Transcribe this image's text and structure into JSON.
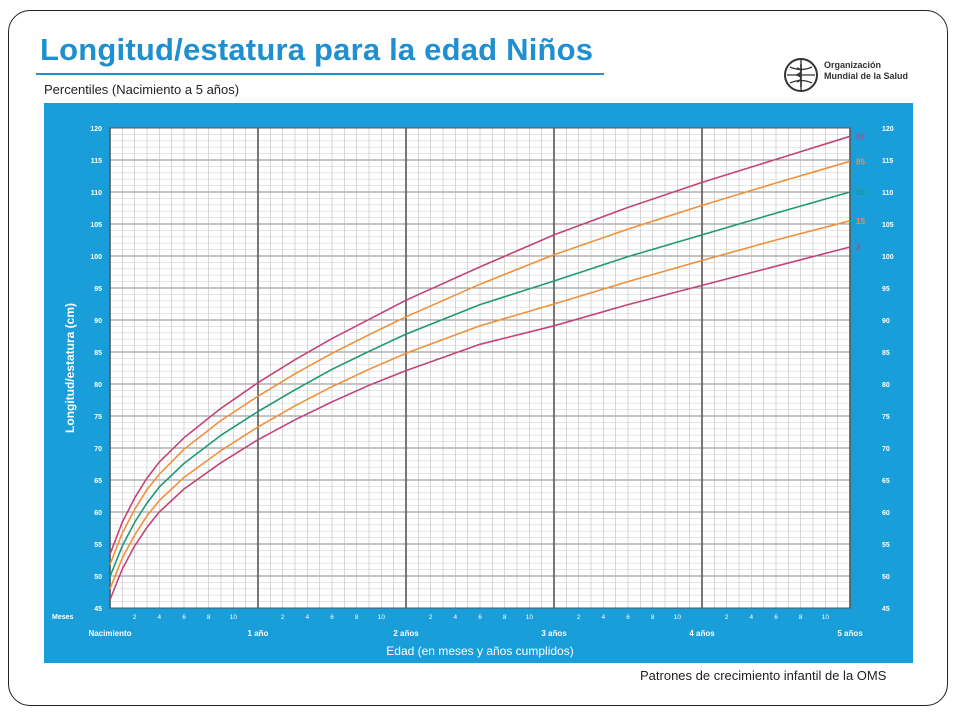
{
  "header": {
    "title": "Longitud/estatura para la edad Niños",
    "subtitle": "Percentiles (Nacimiento a 5 años)",
    "logo_line1": "Organización",
    "logo_line2": "Mundial de la Salud"
  },
  "footer": {
    "text": "Patrones de crecimiento infantil de la OMS"
  },
  "colors": {
    "background": "#1a9ed9",
    "plot": "#ffffff",
    "p97": "#c2447a",
    "p85": "#f0903c",
    "p50": "#1e9a72",
    "p15": "#f0903c",
    "p3": "#c2447a"
  },
  "chart_data": {
    "type": "line",
    "title": "Longitud/estatura para la edad Niños",
    "xlabel": "Edad (en meses y años cumplidos)",
    "ylabel": "Longitud/estatura (cm)",
    "x_unit_label": "Meses",
    "xlim": [
      0,
      60
    ],
    "ylim": [
      45,
      120
    ],
    "x_year_labels": [
      {
        "month": 0,
        "label": "Nacimiento"
      },
      {
        "month": 12,
        "label": "1 año"
      },
      {
        "month": 24,
        "label": "2 años"
      },
      {
        "month": 36,
        "label": "3 años"
      },
      {
        "month": 48,
        "label": "4 años"
      },
      {
        "month": 60,
        "label": "5 años"
      }
    ],
    "x_month_labels": [
      "2",
      "4",
      "6",
      "8",
      "10"
    ],
    "y_ticks": [
      45,
      50,
      55,
      60,
      65,
      70,
      75,
      80,
      85,
      90,
      95,
      100,
      105,
      110,
      115,
      120
    ],
    "grid": true,
    "x": [
      0,
      1,
      2,
      3,
      4,
      6,
      9,
      12,
      15,
      18,
      21,
      24,
      30,
      36,
      42,
      48,
      54,
      60
    ],
    "series": [
      {
        "name": "97",
        "color": "#c2447a",
        "values": [
          53.4,
          58.4,
          62.2,
          65.3,
          67.8,
          71.6,
          76.2,
          80.2,
          83.8,
          87.1,
          90.1,
          93.1,
          98.3,
          103.3,
          107.6,
          111.5,
          115.1,
          118.7
        ]
      },
      {
        "name": "85",
        "color": "#f0903c",
        "values": [
          51.8,
          56.7,
          60.4,
          63.5,
          65.9,
          69.8,
          74.3,
          78.1,
          81.6,
          84.8,
          87.7,
          90.5,
          95.6,
          100.2,
          104.2,
          107.9,
          111.4,
          114.8
        ]
      },
      {
        "name": "50",
        "color": "#1e9a72",
        "values": [
          49.9,
          54.7,
          58.4,
          61.4,
          63.9,
          67.6,
          72.0,
          75.7,
          79.1,
          82.3,
          85.1,
          87.8,
          92.4,
          96.1,
          99.9,
          103.3,
          106.7,
          110.0
        ]
      },
      {
        "name": "15",
        "color": "#f0903c",
        "values": [
          48.0,
          52.8,
          56.4,
          59.4,
          61.8,
          65.4,
          69.6,
          73.3,
          76.6,
          79.6,
          82.3,
          84.8,
          89.1,
          92.5,
          96.0,
          99.3,
          102.5,
          105.5
        ]
      },
      {
        "name": "3",
        "color": "#c2447a",
        "values": [
          46.3,
          51.1,
          54.7,
          57.6,
          60.0,
          63.6,
          67.7,
          71.3,
          74.4,
          77.2,
          79.8,
          82.1,
          86.2,
          89.1,
          92.4,
          95.4,
          98.4,
          101.4
        ]
      }
    ]
  }
}
